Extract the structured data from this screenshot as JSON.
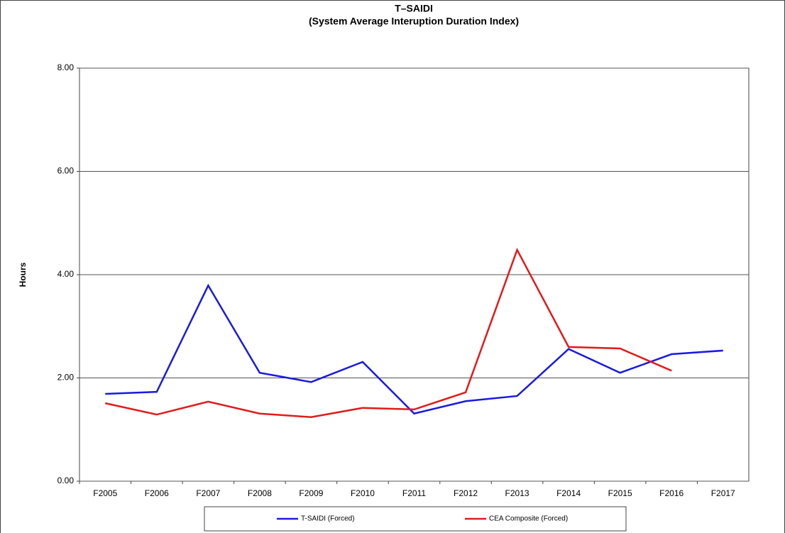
{
  "chart_data": {
    "type": "line",
    "title": "T–SAIDI",
    "subtitle": "(System Average Interuption Duration Index)",
    "y_label": "Hours",
    "categories": [
      "F2005",
      "F2006",
      "F2007",
      "F2008",
      "F2009",
      "F2010",
      "F2011",
      "F2012",
      "F2013",
      "F2014",
      "F2015",
      "F2016",
      "F2017"
    ],
    "series": [
      {
        "name": "T-SAIDI (Forced)",
        "color": "#1a1adf",
        "values": [
          1.69,
          1.73,
          3.79,
          2.1,
          1.92,
          2.31,
          1.31,
          1.55,
          1.65,
          2.56,
          2.1,
          2.46,
          2.53
        ]
      },
      {
        "name": "CEA Composite (Forced)",
        "color": "#e01b1b",
        "values": [
          1.51,
          1.29,
          1.54,
          1.31,
          1.24,
          1.42,
          1.39,
          1.72,
          4.48,
          2.6,
          2.57,
          2.14,
          null
        ]
      }
    ],
    "ylim": [
      0,
      8
    ],
    "yticks": [
      {
        "value": 0,
        "label": "0.00"
      },
      {
        "value": 2,
        "label": "2.00"
      },
      {
        "value": 4,
        "label": "4.00"
      },
      {
        "value": 6,
        "label": "6.00"
      },
      {
        "value": 8,
        "label": "8.00"
      }
    ],
    "grid": true,
    "legend": "bottom"
  }
}
